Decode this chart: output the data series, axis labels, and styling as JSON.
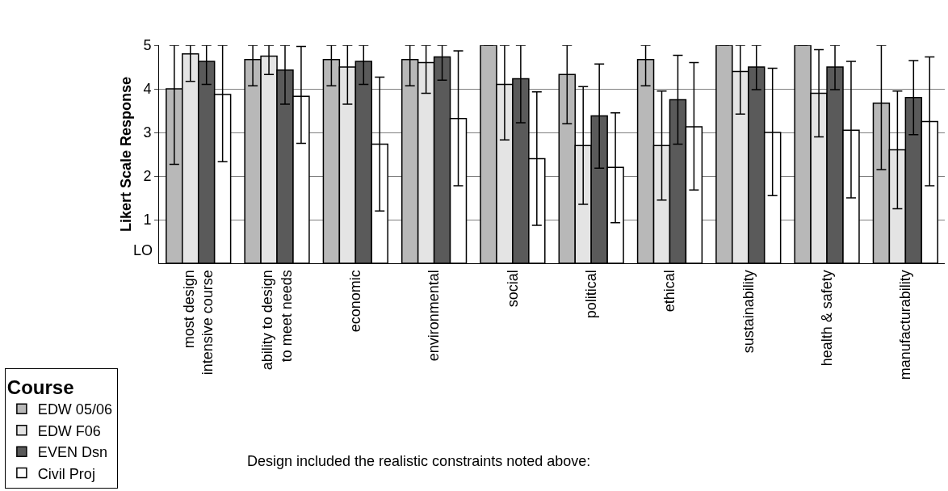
{
  "chart_data": {
    "type": "bar",
    "ylabel": "Likert Scale Response",
    "legend_title": "Course",
    "categories": [
      "most design intensive course",
      "ability to design to meet needs",
      "economic",
      "environmental",
      "social",
      "political",
      "ethical",
      "sustainability",
      "health & safety",
      "manufacturability"
    ],
    "series": [
      {
        "name": "EDW 05/06",
        "color": "#b8b8b8",
        "values": [
          4.0,
          4.67,
          4.67,
          4.67,
          5.0,
          4.33,
          4.67,
          5.0,
          5.0,
          3.67
        ],
        "errors": [
          [
            2.27,
            5
          ],
          [
            4.07,
            5
          ],
          [
            4.07,
            5
          ],
          [
            4.07,
            5
          ],
          null,
          [
            3.2,
            5
          ],
          [
            4.07,
            5
          ],
          null,
          null,
          [
            2.15,
            5
          ]
        ]
      },
      {
        "name": "EDW F06",
        "color": "#e4e4e4",
        "values": [
          4.8,
          4.75,
          4.5,
          4.6,
          4.1,
          2.7,
          2.7,
          4.4,
          3.9,
          2.6
        ],
        "errors": [
          [
            4.17,
            5
          ],
          [
            4.33,
            5
          ],
          [
            3.65,
            5
          ],
          [
            3.9,
            5
          ],
          [
            2.83,
            5
          ],
          [
            1.35,
            4.05
          ],
          [
            1.45,
            3.95
          ],
          [
            3.42,
            5
          ],
          [
            2.9,
            4.9
          ],
          [
            1.25,
            3.95
          ]
        ]
      },
      {
        "name": "EVEN Dsn",
        "color": "#5a5a5a",
        "values": [
          4.63,
          4.43,
          4.63,
          4.73,
          4.23,
          3.38,
          3.75,
          4.5,
          4.5,
          3.8
        ],
        "errors": [
          [
            4.1,
            5
          ],
          [
            3.65,
            5
          ],
          [
            4.1,
            5
          ],
          [
            4.2,
            5
          ],
          [
            3.22,
            5
          ],
          [
            2.18,
            4.57
          ],
          [
            2.73,
            4.77
          ],
          [
            3.98,
            5
          ],
          [
            3.98,
            5
          ],
          [
            2.95,
            4.65
          ]
        ]
      },
      {
        "name": "Civil Proj",
        "color": "#ffffff",
        "values": [
          3.87,
          3.83,
          2.73,
          3.32,
          2.4,
          2.2,
          3.13,
          3.0,
          3.05,
          3.25
        ],
        "errors": [
          [
            2.33,
            5
          ],
          [
            2.75,
            4.97
          ],
          [
            1.2,
            4.27
          ],
          [
            1.78,
            4.87
          ],
          [
            0.87,
            3.93
          ],
          [
            0.93,
            3.45
          ],
          [
            1.68,
            4.6
          ],
          [
            1.55,
            4.47
          ],
          [
            1.5,
            4.63
          ],
          [
            1.78,
            4.73
          ]
        ]
      }
    ],
    "ylim": [
      0,
      5
    ],
    "yticks": [
      1,
      2,
      3,
      4,
      5
    ],
    "grid": "y",
    "legend": "bottom left",
    "annotations": [
      "LO",
      "Design included the realistic constraints noted above:"
    ]
  }
}
